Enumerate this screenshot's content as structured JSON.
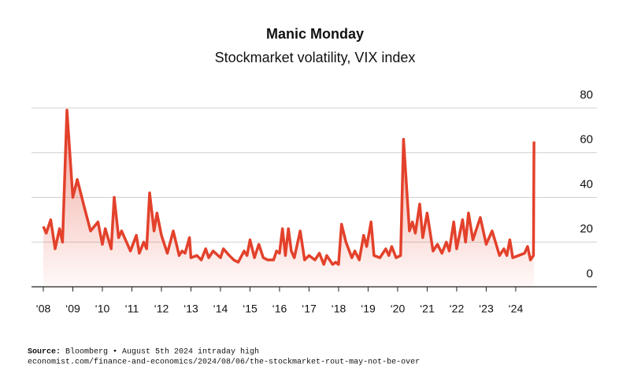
{
  "chart_data": {
    "type": "line",
    "title": "Manic Monday",
    "subtitle": "Stockmarket volatility, VIX index",
    "series": [
      {
        "name": "VIX",
        "color": "#e3412b",
        "x": [
          2008.0,
          2008.1,
          2008.25,
          2008.4,
          2008.55,
          2008.65,
          2008.8,
          2009.0,
          2009.15,
          2009.4,
          2009.6,
          2009.85,
          2010.0,
          2010.1,
          2010.3,
          2010.4,
          2010.55,
          2010.65,
          2010.95,
          2011.15,
          2011.25,
          2011.4,
          2011.5,
          2011.6,
          2011.75,
          2011.85,
          2012.0,
          2012.2,
          2012.4,
          2012.6,
          2012.7,
          2012.8,
          2012.95,
          2013.0,
          2013.2,
          2013.35,
          2013.5,
          2013.6,
          2013.75,
          2014.0,
          2014.1,
          2014.3,
          2014.45,
          2014.6,
          2014.8,
          2014.9,
          2015.0,
          2015.15,
          2015.3,
          2015.45,
          2015.6,
          2015.8,
          2015.9,
          2016.0,
          2016.1,
          2016.2,
          2016.3,
          2016.4,
          2016.5,
          2016.7,
          2016.85,
          2017.0,
          2017.2,
          2017.35,
          2017.5,
          2017.6,
          2017.8,
          2017.9,
          2018.0,
          2018.1,
          2018.25,
          2018.45,
          2018.55,
          2018.7,
          2018.85,
          2018.95,
          2019.1,
          2019.2,
          2019.4,
          2019.6,
          2019.7,
          2019.8,
          2019.95,
          2020.1,
          2020.2,
          2020.4,
          2020.5,
          2020.6,
          2020.75,
          2020.85,
          2021.0,
          2021.2,
          2021.35,
          2021.5,
          2021.65,
          2021.75,
          2021.9,
          2022.0,
          2022.2,
          2022.3,
          2022.4,
          2022.55,
          2022.8,
          2023.0,
          2023.2,
          2023.45,
          2023.6,
          2023.7,
          2023.8,
          2023.9,
          2024.1,
          2024.3,
          2024.4,
          2024.5,
          2024.6,
          2024.62
        ],
        "values": [
          27,
          24,
          30,
          17,
          26,
          20,
          79,
          40,
          48,
          35,
          25,
          29,
          19,
          26,
          17,
          40,
          22,
          25,
          16,
          23,
          15,
          20,
          17,
          42,
          25,
          33,
          23,
          15,
          25,
          14,
          16,
          15,
          22,
          13,
          14,
          12,
          17,
          13,
          16,
          13,
          17,
          14,
          12,
          11,
          16,
          14,
          21,
          13,
          19,
          13,
          12,
          12,
          16,
          15,
          26,
          14,
          26,
          16,
          13,
          25,
          12,
          14,
          12,
          15,
          10,
          14,
          10,
          11,
          10,
          28,
          20,
          13,
          16,
          12,
          23,
          18,
          29,
          14,
          13,
          17,
          14,
          18,
          13,
          14,
          66,
          25,
          29,
          24,
          37,
          22,
          33,
          16,
          19,
          15,
          20,
          16,
          29,
          17,
          30,
          20,
          33,
          21,
          31,
          19,
          25,
          14,
          17,
          14,
          21,
          13,
          14,
          15,
          18,
          12,
          14,
          65
        ]
      }
    ],
    "xlim": [
      2007.6,
      2026.75
    ],
    "ylim": [
      0,
      80
    ],
    "yticks": [
      0,
      20,
      40,
      60,
      80
    ],
    "xticks": [
      {
        "value": 2008,
        "label": "‘08"
      },
      {
        "value": 2009,
        "label": "‘09"
      },
      {
        "value": 2010,
        "label": "‘10"
      },
      {
        "value": 2011,
        "label": "‘11"
      },
      {
        "value": 2012,
        "label": "‘12"
      },
      {
        "value": 2013,
        "label": "‘13"
      },
      {
        "value": 2014,
        "label": "‘14"
      },
      {
        "value": 2015,
        "label": "‘15"
      },
      {
        "value": 2016,
        "label": "‘16"
      },
      {
        "value": 2017,
        "label": "‘17"
      },
      {
        "value": 2018,
        "label": "‘18"
      },
      {
        "value": 2019,
        "label": "‘19"
      },
      {
        "value": 2020,
        "label": "‘20"
      },
      {
        "value": 2021,
        "label": "‘21"
      },
      {
        "value": 2022,
        "label": "‘22"
      },
      {
        "value": 2023,
        "label": "‘23"
      },
      {
        "value": 2024,
        "label": "‘24"
      }
    ],
    "grid": true,
    "source_label": "Source:",
    "source": "Bloomberg • August 5th 2024 intraday high",
    "url": "economist.com/finance-and-economics/2024/08/06/the-stockmarket-rout-may-not-be-over"
  }
}
